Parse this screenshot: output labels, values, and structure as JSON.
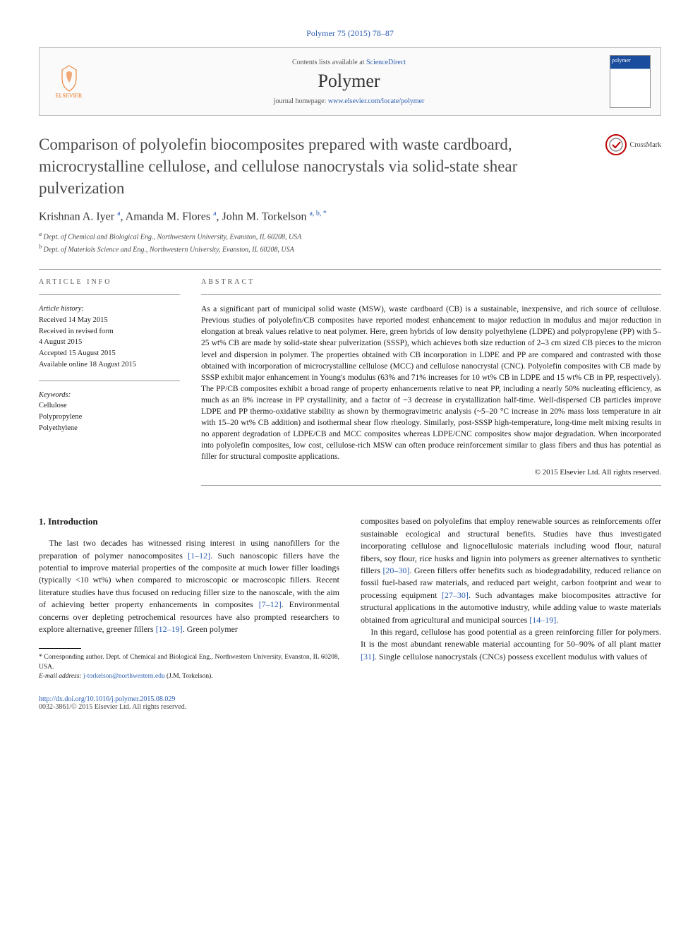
{
  "citation": "Polymer 75 (2015) 78–87",
  "contents_line_prefix": "Contents lists available at ",
  "contents_link": "ScienceDirect",
  "journal_name": "Polymer",
  "homepage_prefix": "journal homepage: ",
  "homepage_url": "www.elsevier.com/locate/polymer",
  "publisher_name": "ELSEVIER",
  "cover_label": "polymer",
  "crossmark_label": "CrossMark",
  "title": "Comparison of polyolefin biocomposites prepared with waste cardboard, microcrystalline cellulose, and cellulose nanocrystals via solid-state shear pulverization",
  "authors_html": "Krishnan A. Iyer <sup>a</sup>, Amanda M. Flores <sup>a</sup>, John M. Torkelson <sup>a, b, *</sup>",
  "affiliations": [
    "a Dept. of Chemical and Biological Eng., Northwestern University, Evanston, IL 60208, USA",
    "b Dept. of Materials Science and Eng., Northwestern University, Evanston, IL 60208, USA"
  ],
  "info_heading": "ARTICLE INFO",
  "abstract_heading": "ABSTRACT",
  "history_label": "Article history:",
  "history": [
    "Received 14 May 2015",
    "Received in revised form",
    "4 August 2015",
    "Accepted 15 August 2015",
    "Available online 18 August 2015"
  ],
  "keywords_label": "Keywords:",
  "keywords": [
    "Cellulose",
    "Polypropylene",
    "Polyethylene"
  ],
  "abstract": "As a significant part of municipal solid waste (MSW), waste cardboard (CB) is a sustainable, inexpensive, and rich source of cellulose. Previous studies of polyolefin/CB composites have reported modest enhancement to major reduction in modulus and major reduction in elongation at break values relative to neat polymer. Here, green hybrids of low density polyethylene (LDPE) and polypropylene (PP) with 5–25 wt% CB are made by solid-state shear pulverization (SSSP), which achieves both size reduction of 2–3 cm sized CB pieces to the micron level and dispersion in polymer. The properties obtained with CB incorporation in LDPE and PP are compared and contrasted with those obtained with incorporation of microcrystalline cellulose (MCC) and cellulose nanocrystal (CNC). Polyolefin composites with CB made by SSSP exhibit major enhancement in Young's modulus (63% and 71% increases for 10 wt% CB in LDPE and 15 wt% CB in PP, respectively). The PP/CB composites exhibit a broad range of property enhancements relative to neat PP, including a nearly 50% nucleating efficiency, as much as an 8% increase in PP crystallinity, and a factor of ~3 decrease in crystallization half-time. Well-dispersed CB particles improve LDPE and PP thermo-oxidative stability as shown by thermogravimetric analysis (~5–20 °C increase in 20% mass loss temperature in air with 15–20 wt% CB addition) and isothermal shear flow rheology. Similarly, post-SSSP high-temperature, long-time melt mixing results in no apparent degradation of LDPE/CB and MCC composites whereas LDPE/CNC composites show major degradation. When incorporated into polyolefin composites, low cost, cellulose-rich MSW can often produce reinforcement similar to glass fibers and thus has potential as filler for structural composite applications.",
  "abstract_copyright": "© 2015 Elsevier Ltd. All rights reserved.",
  "section1_heading": "1. Introduction",
  "body_left": "The last two decades has witnessed rising interest in using nanofillers for the preparation of polymer nanocomposites [1–12]. Such nanoscopic fillers have the potential to improve material properties of the composite at much lower filler loadings (typically <10 wt%) when compared to microscopic or macroscopic fillers. Recent literature studies have thus focused on reducing filler size to the nanoscale, with the aim of achieving better property enhancements in composites [7–12]. Environmental concerns over depleting petrochemical resources have also prompted researchers to explore alternative, greener fillers [12–19]. Green polymer",
  "body_right_p1": "composites based on polyolefins that employ renewable sources as reinforcements offer sustainable ecological and structural benefits. Studies have thus investigated incorporating cellulose and lignocellulosic materials including wood flour, natural fibers, soy flour, rice husks and lignin into polymers as greener alternatives to synthetic fillers [20–30]. Green fillers offer benefits such as biodegradability, reduced reliance on fossil fuel-based raw materials, and reduced part weight, carbon footprint and wear to processing equipment [27–30]. Such advantages make biocomposites attractive for structural applications in the automotive industry, while adding value to waste materials obtained from agricultural and municipal sources [14–19].",
  "body_right_p2": "In this regard, cellulose has good potential as a green reinforcing filler for polymers. It is the most abundant renewable material accounting for 50–90% of all plant matter [31]. Single cellulose nanocrystals (CNCs) possess excellent modulus with values of",
  "footnote_corr": "* Corresponding author. Dept. of Chemical and Biological Eng., Northwestern University, Evanston, IL 60208, USA.",
  "footnote_email_label": "E-mail address: ",
  "footnote_email": "j-torkelson@northwestern.edu",
  "footnote_email_suffix": " (J.M. Torkelson).",
  "doi": "http://dx.doi.org/10.1016/j.polymer.2015.08.029",
  "issn_line": "0032-3861/© 2015 Elsevier Ltd. All rights reserved.",
  "colors": {
    "link": "#2a5db0",
    "elsevier_orange": "#e9711c",
    "text": "#1a1a1a",
    "muted": "#555555",
    "journal_blue": "#1a4d9e"
  }
}
